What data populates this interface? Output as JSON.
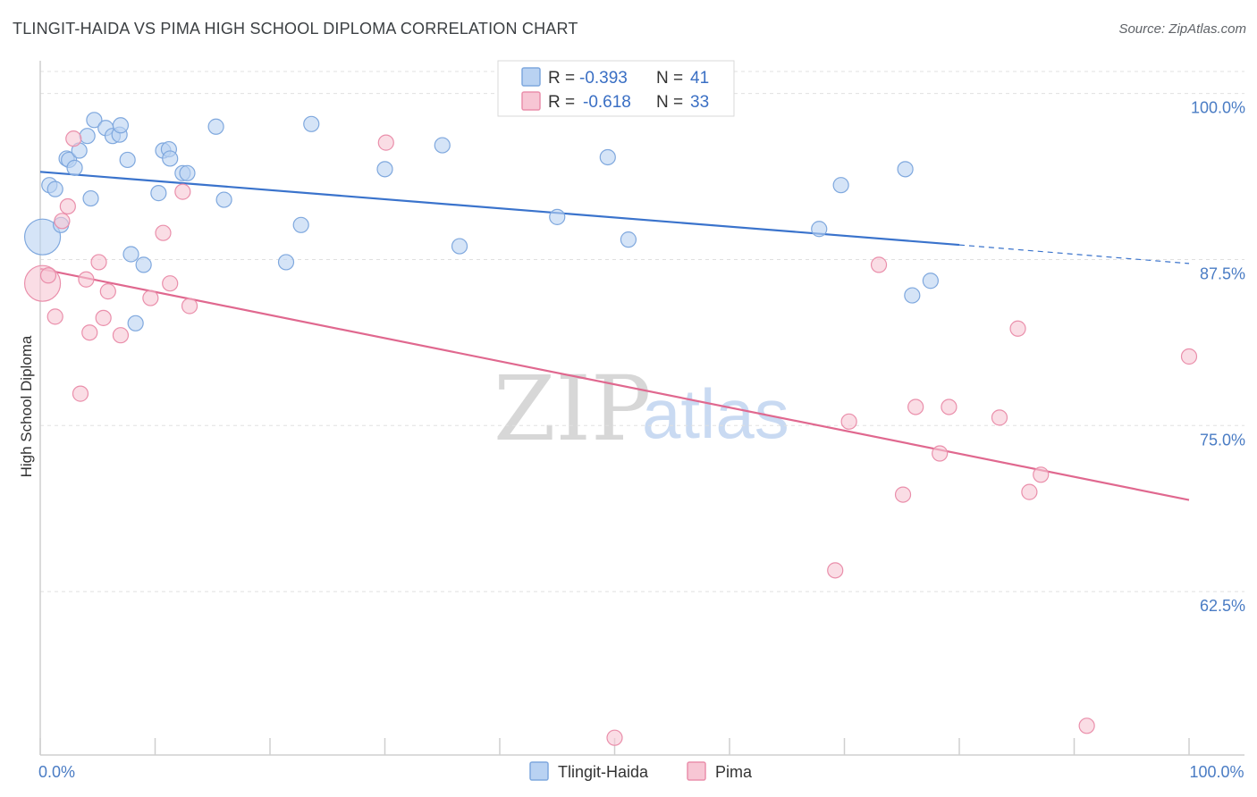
{
  "title": "TLINGIT-HAIDA VS PIMA HIGH SCHOOL DIPLOMA CORRELATION CHART",
  "source": "Source: ZipAtlas.com",
  "colors": {
    "blue_fill": "#b9d2f2",
    "blue_stroke": "#7fa8de",
    "blue_line": "#3a73cc",
    "pink_fill": "#f7c6d4",
    "pink_stroke": "#ea8fab",
    "pink_line": "#e0688f",
    "grid": "#e0e0e0",
    "tick_text": "#4a7cc4"
  },
  "legend": {
    "rows": [
      {
        "r_label": "R =",
        "r_value": "-0.393",
        "n_label": "N =",
        "n_value": "41",
        "color": "blue"
      },
      {
        "r_label": "R =",
        "r_value": "-0.618",
        "n_label": "N =",
        "n_value": "33",
        "color": "pink"
      }
    ]
  },
  "bottom_legend": [
    "Tlingit-Haida",
    "Pima"
  ],
  "watermark": {
    "zip": "ZIP",
    "atlas": "atlas"
  },
  "chart_data": {
    "type": "scatter",
    "title": "TLINGIT-HAIDA VS PIMA HIGH SCHOOL DIPLOMA CORRELATION CHART",
    "xlabel": "",
    "ylabel": "High School Diploma",
    "xlim": [
      0,
      100
    ],
    "ylim": [
      50.2,
      103.0
    ],
    "x_tick_labels": [
      {
        "value": 0,
        "label": "0.0%"
      },
      {
        "value": 100,
        "label": "100.0%"
      }
    ],
    "x_minor_ticks": [
      0,
      10,
      20,
      30,
      40,
      50,
      60,
      70,
      80,
      90,
      100
    ],
    "y_ticks": [
      {
        "value": 100,
        "label": "100.0%"
      },
      {
        "value": 87.5,
        "label": "87.5%"
      },
      {
        "value": 75,
        "label": "75.0%"
      },
      {
        "value": 62.5,
        "label": "62.5%"
      }
    ],
    "grid": true,
    "series": [
      {
        "name": "Tlingit-Haida",
        "color": "blue",
        "points": [
          {
            "x": 0.2,
            "y": 89.2,
            "big": true
          },
          {
            "x": 0.8,
            "y": 93.1
          },
          {
            "x": 1.3,
            "y": 92.8
          },
          {
            "x": 1.8,
            "y": 90.1
          },
          {
            "x": 2.3,
            "y": 95.1
          },
          {
            "x": 2.5,
            "y": 95.0
          },
          {
            "x": 3.0,
            "y": 94.4
          },
          {
            "x": 3.4,
            "y": 95.7
          },
          {
            "x": 4.1,
            "y": 96.8
          },
          {
            "x": 4.4,
            "y": 92.1
          },
          {
            "x": 4.7,
            "y": 98.0
          },
          {
            "x": 5.7,
            "y": 97.4
          },
          {
            "x": 6.3,
            "y": 96.8
          },
          {
            "x": 6.9,
            "y": 96.9
          },
          {
            "x": 7.0,
            "y": 97.6
          },
          {
            "x": 7.6,
            "y": 95.0
          },
          {
            "x": 7.9,
            "y": 87.9
          },
          {
            "x": 8.3,
            "y": 82.7
          },
          {
            "x": 9.0,
            "y": 87.1
          },
          {
            "x": 10.3,
            "y": 92.5
          },
          {
            "x": 10.7,
            "y": 95.7
          },
          {
            "x": 11.2,
            "y": 95.8
          },
          {
            "x": 11.3,
            "y": 95.1
          },
          {
            "x": 12.4,
            "y": 94.0
          },
          {
            "x": 12.8,
            "y": 94.0
          },
          {
            "x": 15.3,
            "y": 97.5
          },
          {
            "x": 16.0,
            "y": 92.0
          },
          {
            "x": 21.4,
            "y": 87.3
          },
          {
            "x": 22.7,
            "y": 90.1
          },
          {
            "x": 23.6,
            "y": 97.7
          },
          {
            "x": 30.0,
            "y": 94.3
          },
          {
            "x": 35.0,
            "y": 96.1
          },
          {
            "x": 36.5,
            "y": 88.5
          },
          {
            "x": 45.0,
            "y": 90.7
          },
          {
            "x": 49.4,
            "y": 95.2
          },
          {
            "x": 51.2,
            "y": 89.0
          },
          {
            "x": 67.8,
            "y": 89.8
          },
          {
            "x": 69.7,
            "y": 93.1
          },
          {
            "x": 75.3,
            "y": 94.3
          },
          {
            "x": 75.9,
            "y": 84.8
          },
          {
            "x": 77.5,
            "y": 85.9
          }
        ],
        "trend": {
          "x0": 0,
          "y0": 94.1,
          "x1": 80,
          "y1": 88.6,
          "dash_x1": 100,
          "dash_y1": 87.2
        }
      },
      {
        "name": "Pima",
        "color": "pink",
        "points": [
          {
            "x": 0.2,
            "y": 85.7,
            "big": true
          },
          {
            "x": 0.7,
            "y": 86.3
          },
          {
            "x": 1.3,
            "y": 83.2
          },
          {
            "x": 1.9,
            "y": 90.4
          },
          {
            "x": 2.4,
            "y": 91.5
          },
          {
            "x": 2.9,
            "y": 96.6
          },
          {
            "x": 3.5,
            "y": 77.4
          },
          {
            "x": 4.0,
            "y": 86.0
          },
          {
            "x": 4.3,
            "y": 82.0
          },
          {
            "x": 5.1,
            "y": 87.3
          },
          {
            "x": 5.5,
            "y": 83.1
          },
          {
            "x": 5.9,
            "y": 85.1
          },
          {
            "x": 7.0,
            "y": 81.8
          },
          {
            "x": 9.6,
            "y": 84.6
          },
          {
            "x": 10.7,
            "y": 89.5
          },
          {
            "x": 11.3,
            "y": 85.7
          },
          {
            "x": 12.4,
            "y": 92.6
          },
          {
            "x": 13.0,
            "y": 84.0
          },
          {
            "x": 30.1,
            "y": 96.3
          },
          {
            "x": 50.0,
            "y": 51.5
          },
          {
            "x": 69.2,
            "y": 64.1
          },
          {
            "x": 70.4,
            "y": 75.3
          },
          {
            "x": 73.0,
            "y": 87.1
          },
          {
            "x": 75.1,
            "y": 69.8
          },
          {
            "x": 76.2,
            "y": 76.4
          },
          {
            "x": 78.3,
            "y": 72.9
          },
          {
            "x": 79.1,
            "y": 76.4
          },
          {
            "x": 83.5,
            "y": 75.6
          },
          {
            "x": 85.1,
            "y": 82.3
          },
          {
            "x": 86.1,
            "y": 70.0
          },
          {
            "x": 87.1,
            "y": 71.3
          },
          {
            "x": 91.1,
            "y": 52.4
          },
          {
            "x": 100.0,
            "y": 80.2
          }
        ],
        "trend": {
          "x0": 0,
          "y0": 86.8,
          "x1": 100,
          "y1": 69.4
        }
      }
    ]
  }
}
